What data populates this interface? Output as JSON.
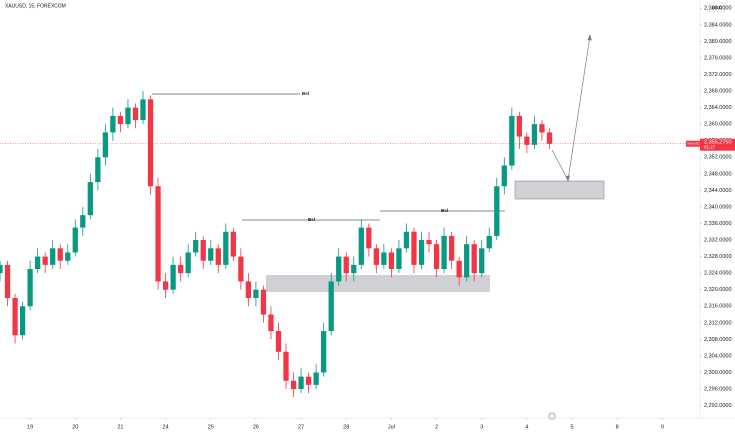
{
  "chart_data": {
    "type": "candlestick",
    "title": "XAUUSD, 15, FOREXCOM",
    "currency": "USD",
    "up_color": "#089981",
    "down_color": "#f23645",
    "x": [
      1,
      2,
      3,
      4,
      5,
      6,
      7,
      8,
      9,
      10,
      11,
      12,
      13,
      14,
      15,
      16,
      17,
      18,
      19,
      20,
      21,
      22,
      23,
      24,
      25,
      26,
      27,
      28,
      29,
      30,
      31,
      32,
      33,
      34,
      35,
      36,
      37,
      38,
      39,
      40,
      41,
      42,
      43,
      44,
      45,
      46,
      47,
      48,
      49,
      50,
      51,
      52,
      53,
      54,
      55,
      56,
      57,
      58,
      59,
      60,
      61,
      62,
      63,
      64,
      65,
      66,
      67,
      68,
      69,
      70,
      71,
      72,
      73,
      74
    ],
    "open": [
      2324,
      2326,
      2318,
      2309,
      2316,
      2325,
      2328,
      2326,
      2330,
      2327,
      2329,
      2335,
      2338,
      2346,
      2352,
      2358,
      2362,
      2360,
      2364,
      2361,
      2366,
      2345,
      2322,
      2320,
      2326,
      2324,
      2329,
      2332,
      2327,
      2330,
      2326,
      2334,
      2328,
      2322,
      2318,
      2320,
      2314,
      2310,
      2305,
      2298,
      2296,
      2299,
      2297,
      2300,
      2310,
      2322,
      2328,
      2324,
      2326,
      2335,
      2330,
      2326,
      2329,
      2325,
      2330,
      2334,
      2326,
      2332,
      2331,
      2325,
      2333,
      2327,
      2323,
      2331,
      2324,
      2330,
      2333,
      2345,
      2350,
      2362,
      2357,
      2355,
      2360,
      2358
    ],
    "high": [
      2327,
      2327,
      2319,
      2317,
      2327,
      2330,
      2329,
      2332,
      2331,
      2331,
      2337,
      2340,
      2348,
      2354,
      2360,
      2364,
      2363,
      2366,
      2365,
      2368,
      2367,
      2347,
      2324,
      2328,
      2328,
      2331,
      2334,
      2333,
      2332,
      2331,
      2336,
      2335,
      2330,
      2324,
      2322,
      2321,
      2316,
      2312,
      2307,
      2300,
      2301,
      2300,
      2302,
      2312,
      2324,
      2330,
      2329,
      2328,
      2337,
      2336,
      2331,
      2331,
      2330,
      2332,
      2336,
      2335,
      2334,
      2334,
      2332,
      2335,
      2334,
      2328,
      2333,
      2332,
      2332,
      2335,
      2347,
      2352,
      2364,
      2363,
      2358,
      2362,
      2361,
      2359
    ],
    "low": [
      2322,
      2316,
      2307,
      2308,
      2315,
      2324,
      2324,
      2325,
      2325,
      2326,
      2328,
      2333,
      2337,
      2344,
      2350,
      2356,
      2358,
      2359,
      2359,
      2360,
      2343,
      2320,
      2318,
      2319,
      2322,
      2323,
      2328,
      2325,
      2326,
      2324,
      2325,
      2327,
      2320,
      2316,
      2316,
      2312,
      2308,
      2303,
      2296,
      2294,
      2295,
      2295,
      2296,
      2299,
      2309,
      2321,
      2322,
      2322,
      2325,
      2328,
      2324,
      2325,
      2323,
      2324,
      2329,
      2324,
      2325,
      2329,
      2323,
      2324,
      2325,
      2321,
      2322,
      2322,
      2323,
      2329,
      2332,
      2343,
      2349,
      2354,
      2353,
      2354,
      2356,
      2354
    ],
    "close": [
      2326,
      2318,
      2309,
      2316,
      2325,
      2328,
      2326,
      2330,
      2327,
      2329,
      2335,
      2338,
      2346,
      2352,
      2358,
      2362,
      2360,
      2364,
      2361,
      2366,
      2345,
      2322,
      2320,
      2326,
      2324,
      2329,
      2332,
      2327,
      2330,
      2326,
      2334,
      2328,
      2322,
      2318,
      2320,
      2314,
      2310,
      2305,
      2298,
      2296,
      2299,
      2297,
      2300,
      2310,
      2322,
      2328,
      2324,
      2326,
      2335,
      2330,
      2326,
      2329,
      2325,
      2330,
      2334,
      2326,
      2332,
      2331,
      2325,
      2333,
      2327,
      2323,
      2331,
      2324,
      2330,
      2333,
      2345,
      2350,
      2362,
      2357,
      2355,
      2360,
      2358,
      2355.275
    ],
    "last_price_label": "2,355.2750",
    "countdown": "01:27",
    "xlim": [
      1,
      94
    ],
    "ylim": [
      2289,
      2390
    ],
    "xticks": [
      {
        "value": 5,
        "label": "19"
      },
      {
        "value": 11,
        "label": "20"
      },
      {
        "value": 17,
        "label": "21"
      },
      {
        "value": 23,
        "label": "24"
      },
      {
        "value": 29,
        "label": "25"
      },
      {
        "value": 35,
        "label": "26"
      },
      {
        "value": 41,
        "label": "27"
      },
      {
        "value": 47,
        "label": "28"
      },
      {
        "value": 53,
        "label": "Jul"
      },
      {
        "value": 59,
        "label": "2"
      },
      {
        "value": 65,
        "label": "3"
      },
      {
        "value": 71,
        "label": "4"
      },
      {
        "value": 77,
        "label": "5"
      },
      {
        "value": 83,
        "label": "8"
      },
      {
        "value": 89,
        "label": "9"
      }
    ],
    "yticks": [
      {
        "value": 2292,
        "label": "2,292.0000"
      },
      {
        "value": 2296,
        "label": "2,296.0000"
      },
      {
        "value": 2300,
        "label": "2,300.0000"
      },
      {
        "value": 2304,
        "label": "2,304.0000"
      },
      {
        "value": 2308,
        "label": "2,308.0000"
      },
      {
        "value": 2312,
        "label": "2,312.0000"
      },
      {
        "value": 2316,
        "label": "2,316.0000"
      },
      {
        "value": 2320,
        "label": "2,320.0000"
      },
      {
        "value": 2324,
        "label": "2,324.0000"
      },
      {
        "value": 2328,
        "label": "2,328.0000"
      },
      {
        "value": 2332,
        "label": "2,332.0000"
      },
      {
        "value": 2336,
        "label": "2,336.0000"
      },
      {
        "value": 2340,
        "label": "2,340.0000"
      },
      {
        "value": 2344,
        "label": "2,344.0000"
      },
      {
        "value": 2348,
        "label": "2,348.0000"
      },
      {
        "value": 2352,
        "label": "2,352.0000"
      },
      {
        "value": 2356,
        "label": "2,356.0000"
      },
      {
        "value": 2360,
        "label": "2,360.0000"
      },
      {
        "value": 2364,
        "label": "2,364.0000"
      },
      {
        "value": 2368,
        "label": "2,368.0000"
      },
      {
        "value": 2372,
        "label": "2,372.0000"
      },
      {
        "value": 2376,
        "label": "2,376.0000"
      },
      {
        "value": 2380,
        "label": "2,380.0000"
      },
      {
        "value": 2384,
        "label": "2,384.0000"
      },
      {
        "value": 2388,
        "label": "2,388.0000"
      }
    ],
    "annotations": [
      "Bsl",
      "Bsl",
      "Bsl"
    ]
  }
}
